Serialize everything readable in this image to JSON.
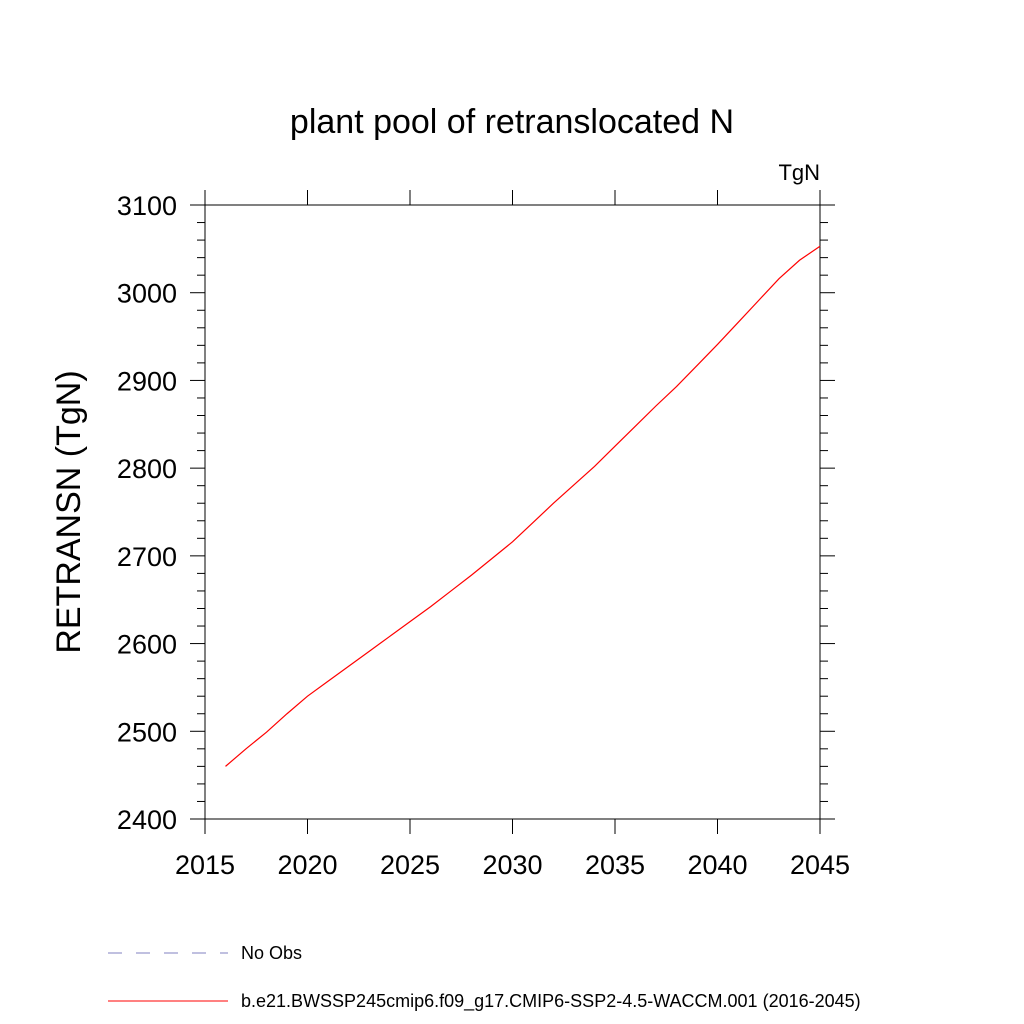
{
  "chart_data": {
    "type": "line",
    "title": "plant pool of retranslocated N",
    "units_label": "TgN",
    "ylabel": "RETRANSN  (TgN)",
    "xlabel": "",
    "xlim": [
      2015,
      2045
    ],
    "ylim": [
      2400,
      3100
    ],
    "x_ticks": [
      2015,
      2020,
      2025,
      2030,
      2035,
      2040,
      2045
    ],
    "y_ticks": [
      2400,
      2500,
      2600,
      2700,
      2800,
      2900,
      3000,
      3100
    ],
    "grid": false,
    "series": [
      {
        "name": "b.e21.BWSSP245cmip6.f09_g17.CMIP6-SSP2-4.5-WACCM.001 (2016-2045)",
        "color": "#ff0000",
        "x": [
          2016,
          2017,
          2018,
          2019,
          2020,
          2021,
          2022,
          2023,
          2024,
          2025,
          2026,
          2027,
          2028,
          2029,
          2030,
          2031,
          2032,
          2033,
          2034,
          2035,
          2036,
          2037,
          2038,
          2039,
          2040,
          2041,
          2042,
          2043,
          2044,
          2045
        ],
        "values": [
          2460,
          2480,
          2499,
          2520,
          2540,
          2557,
          2574,
          2591,
          2608,
          2625,
          2642,
          2660,
          2678,
          2697,
          2716,
          2738,
          2760,
          2781,
          2802,
          2825,
          2848,
          2871,
          2893,
          2917,
          2941,
          2966,
          2991,
          3016,
          3037,
          3053
        ]
      }
    ],
    "legend": {
      "placement": "bottom",
      "entries": [
        {
          "label": "No Obs",
          "color": "#8080c0",
          "style": "dashed"
        },
        {
          "label": "b.e21.BWSSP245cmip6.f09_g17.CMIP6-SSP2-4.5-WACCM.001 (2016-2045)",
          "color": "#ff0000",
          "style": "solid"
        }
      ]
    }
  }
}
